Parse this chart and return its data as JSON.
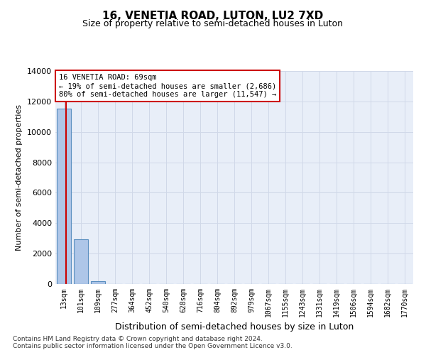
{
  "title": "16, VENETIA ROAD, LUTON, LU2 7XD",
  "subtitle": "Size of property relative to semi-detached houses in Luton",
  "xlabel": "Distribution of semi-detached houses by size in Luton",
  "ylabel": "Number of semi-detached properties",
  "bar_labels": [
    "13sqm",
    "101sqm",
    "189sqm",
    "277sqm",
    "364sqm",
    "452sqm",
    "540sqm",
    "628sqm",
    "716sqm",
    "804sqm",
    "892sqm",
    "979sqm",
    "1067sqm",
    "1155sqm",
    "1243sqm",
    "1331sqm",
    "1419sqm",
    "1506sqm",
    "1594sqm",
    "1682sqm",
    "1770sqm"
  ],
  "bar_values": [
    11547,
    2950,
    190,
    0,
    0,
    0,
    0,
    0,
    0,
    0,
    0,
    0,
    0,
    0,
    0,
    0,
    0,
    0,
    0,
    0,
    0
  ],
  "bar_color": "#aec6e8",
  "bar_edge_color": "#5a8fc0",
  "annotation_text": "16 VENETIA ROAD: 69sqm\n← 19% of semi-detached houses are smaller (2,686)\n80% of semi-detached houses are larger (11,547) →",
  "annotation_box_color": "#ffffff",
  "annotation_box_edge": "#cc0000",
  "red_line_color": "#cc0000",
  "grid_color": "#d0d8e8",
  "bg_color": "#e8eef8",
  "ylim": [
    0,
    14000
  ],
  "yticks": [
    0,
    2000,
    4000,
    6000,
    8000,
    10000,
    12000,
    14000
  ],
  "footer_line1": "Contains HM Land Registry data © Crown copyright and database right 2024.",
  "footer_line2": "Contains public sector information licensed under the Open Government Licence v3.0."
}
